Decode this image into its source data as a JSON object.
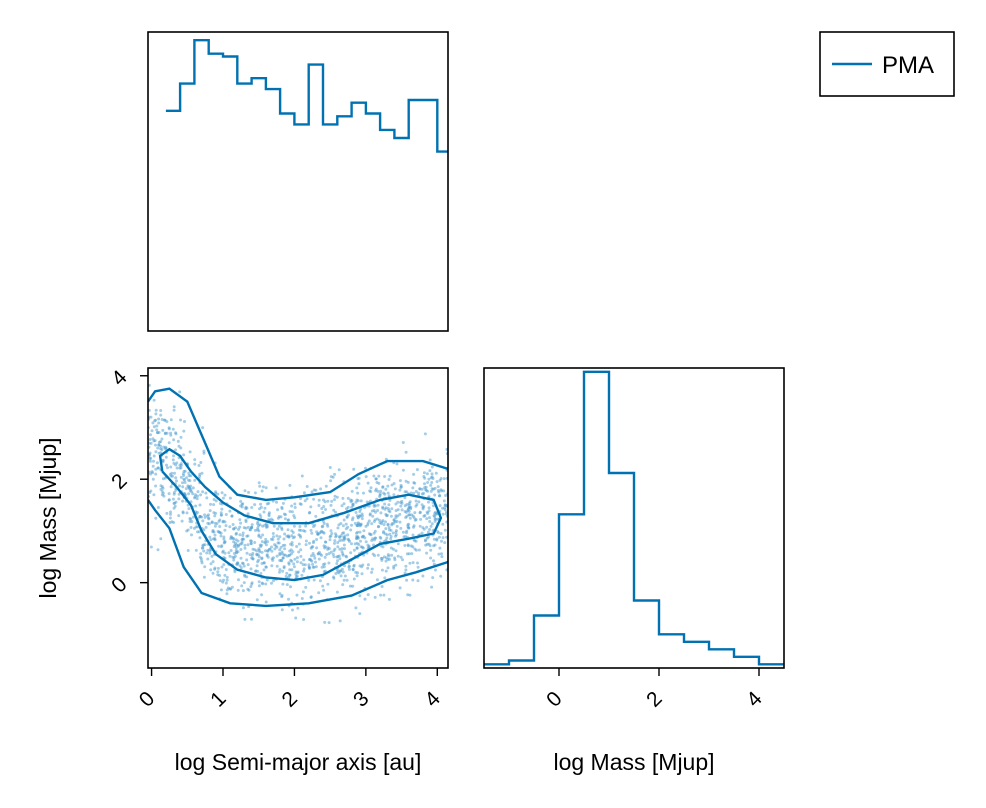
{
  "colors": {
    "series": "#0072b2",
    "scatter": "#4a9bd0",
    "axis": "#000000",
    "background": "#ffffff"
  },
  "legend": {
    "placement": "top-right",
    "entries": [
      "PMA"
    ]
  },
  "chart_data": [
    {
      "id": "hist-semimajor",
      "type": "step",
      "xlabel": "",
      "ylabel": "",
      "xlim": [
        -0.05,
        4.15
      ],
      "ylim": [
        0,
        1.1
      ],
      "show_ticks": false,
      "series": [
        {
          "name": "PMA",
          "edges": [
            0.2,
            0.4,
            0.6,
            0.8,
            1.0,
            1.2,
            1.4,
            1.6,
            1.8,
            2.0,
            2.2,
            2.4,
            2.6,
            2.8,
            3.0,
            3.2,
            3.4,
            3.6,
            4.0,
            4.15
          ],
          "counts": [
            0.81,
            0.91,
            1.07,
            1.02,
            1.01,
            0.91,
            0.93,
            0.89,
            0.8,
            0.76,
            0.98,
            0.76,
            0.79,
            0.84,
            0.8,
            0.74,
            0.71,
            0.85,
            0.66
          ]
        }
      ]
    },
    {
      "id": "scatter-joint",
      "type": "scatter",
      "xlabel": "log Semi-major axis [au]",
      "ylabel": "log Mass [Mjup]",
      "xlim": [
        -0.05,
        4.15
      ],
      "ylim": [
        -1.65,
        4.15
      ],
      "xticks": [
        0,
        1,
        2,
        3,
        4
      ],
      "yticks": [
        0,
        2,
        4
      ],
      "xtick_labels": [
        "0",
        "1",
        "2",
        "3",
        "4"
      ],
      "ytick_labels": [
        "0",
        "2",
        "4"
      ],
      "contours": [
        [
          [
            0.15,
            2.15
          ],
          [
            0.12,
            2.45
          ],
          [
            0.25,
            2.58
          ],
          [
            0.4,
            2.45
          ],
          [
            0.55,
            2.15
          ],
          [
            0.75,
            1.85
          ],
          [
            1.0,
            1.55
          ],
          [
            1.3,
            1.3
          ],
          [
            1.7,
            1.15
          ],
          [
            2.2,
            1.15
          ],
          [
            2.7,
            1.35
          ],
          [
            3.2,
            1.6
          ],
          [
            3.6,
            1.7
          ],
          [
            3.95,
            1.6
          ],
          [
            4.05,
            1.25
          ],
          [
            3.95,
            0.95
          ],
          [
            3.6,
            0.85
          ],
          [
            3.2,
            0.75
          ],
          [
            2.8,
            0.45
          ],
          [
            2.4,
            0.15
          ],
          [
            2.0,
            0.05
          ],
          [
            1.6,
            0.1
          ],
          [
            1.2,
            0.25
          ],
          [
            0.9,
            0.55
          ],
          [
            0.7,
            1.0
          ],
          [
            0.55,
            1.5
          ],
          [
            0.35,
            1.85
          ],
          [
            0.15,
            2.15
          ]
        ],
        [
          [
            -0.05,
            1.6
          ],
          [
            0.05,
            1.4
          ],
          [
            0.25,
            1.05
          ],
          [
            0.45,
            0.3
          ],
          [
            0.7,
            -0.2
          ],
          [
            1.1,
            -0.4
          ],
          [
            1.6,
            -0.45
          ],
          [
            2.2,
            -0.4
          ],
          [
            2.8,
            -0.25
          ],
          [
            3.3,
            0.05
          ],
          [
            3.7,
            0.2
          ],
          [
            4.15,
            0.4
          ]
        ],
        [
          [
            -0.05,
            3.5
          ],
          [
            0.05,
            3.7
          ],
          [
            0.25,
            3.75
          ],
          [
            0.5,
            3.5
          ],
          [
            0.75,
            2.7
          ],
          [
            0.95,
            2.05
          ],
          [
            1.2,
            1.7
          ],
          [
            1.6,
            1.6
          ],
          [
            2.0,
            1.65
          ],
          [
            2.5,
            1.75
          ],
          [
            2.9,
            2.1
          ],
          [
            3.3,
            2.35
          ],
          [
            3.8,
            2.35
          ],
          [
            4.15,
            2.2
          ]
        ]
      ]
    },
    {
      "id": "hist-mass",
      "type": "step",
      "xlabel": "log Mass [Mjup]",
      "ylabel": "",
      "xlim": [
        -1.5,
        4.5
      ],
      "ylim": [
        0,
        4.0
      ],
      "xticks": [
        0,
        2,
        4
      ],
      "xtick_labels": [
        "0",
        "2",
        "4"
      ],
      "series": [
        {
          "name": "PMA",
          "edges": [
            -1.5,
            -1.0,
            -0.5,
            0.0,
            0.5,
            1.0,
            1.5,
            2.0,
            2.5,
            3.0,
            3.5,
            4.0,
            4.5
          ],
          "counts": [
            0.05,
            0.1,
            0.7,
            2.05,
            3.95,
            2.6,
            0.9,
            0.45,
            0.35,
            0.25,
            0.15,
            0.05
          ]
        }
      ]
    }
  ]
}
